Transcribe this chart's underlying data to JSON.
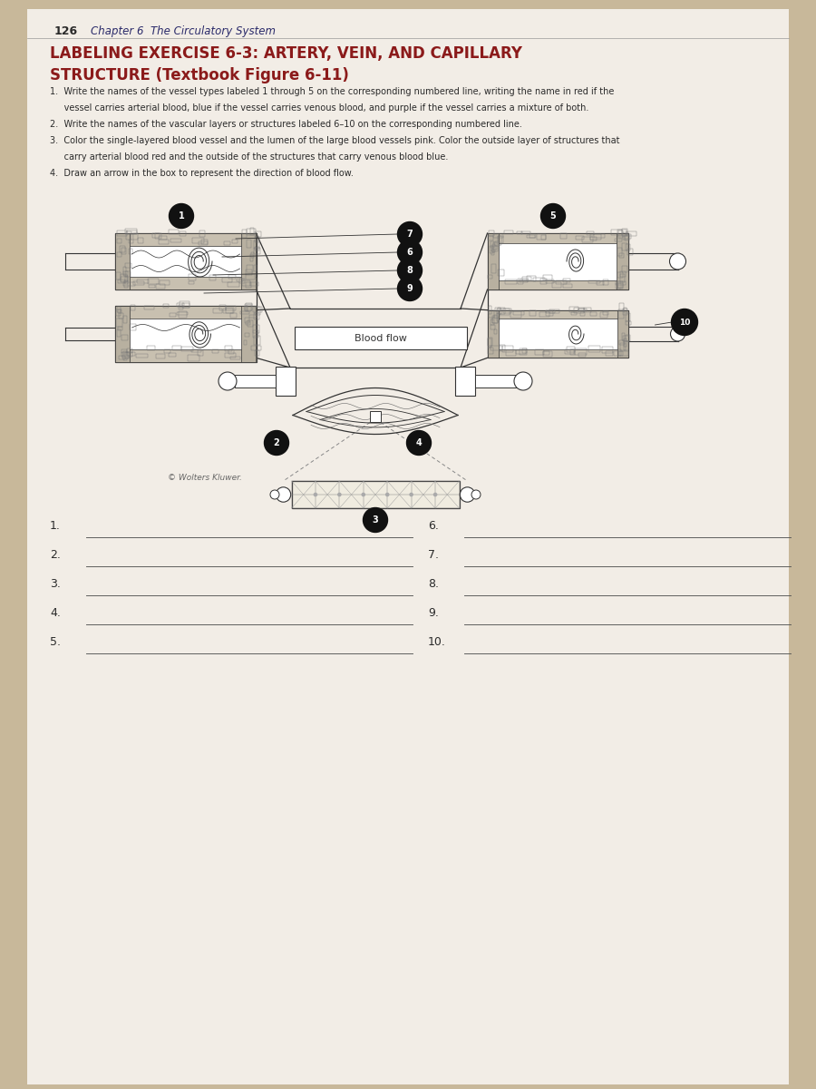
{
  "page_number": "126",
  "chapter_title": "Chapter 6  The Circulatory System",
  "exercise_title_line1": "LABELING EXERCISE 6-3: ARTERY, VEIN, AND CAPILLARY",
  "exercise_title_line2": "STRUCTURE (Textbook Figure 6-11)",
  "label_numbers_left": [
    "1.",
    "2.",
    "3.",
    "4.",
    "5."
  ],
  "label_numbers_right": [
    "6.",
    "7.",
    "8.",
    "9.",
    "10."
  ],
  "blood_flow_label": "Blood flow",
  "copyright": "© Wolters Kluwer.",
  "background_color": "#c8b89a",
  "page_color": "#f2ede6",
  "title_color": "#8b1a1a",
  "text_color": "#2a2a2a",
  "chapter_color": "#2a2a6a",
  "dark": "#333333",
  "wall_color": "#c8c0b0",
  "wall_color2": "#b8b0a0"
}
